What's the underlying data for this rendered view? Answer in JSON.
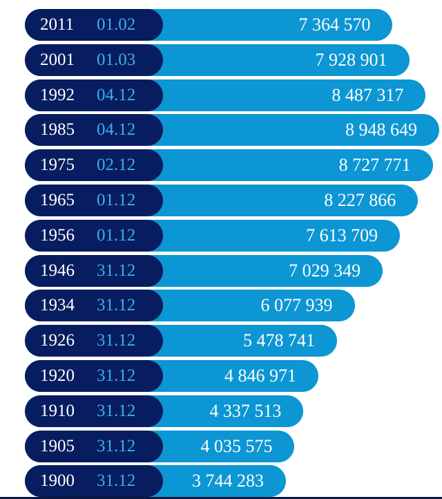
{
  "chart_data": {
    "type": "bar",
    "orientation": "horizontal",
    "categories": [
      {
        "year": "2011",
        "date": "01.02"
      },
      {
        "year": "2001",
        "date": "01.03"
      },
      {
        "year": "1992",
        "date": "04.12"
      },
      {
        "year": "1985",
        "date": "04.12"
      },
      {
        "year": "1975",
        "date": "02.12"
      },
      {
        "year": "1965",
        "date": "01.12"
      },
      {
        "year": "1956",
        "date": "01.12"
      },
      {
        "year": "1946",
        "date": "31.12"
      },
      {
        "year": "1934",
        "date": "31.12"
      },
      {
        "year": "1926",
        "date": "31.12"
      },
      {
        "year": "1920",
        "date": "31.12"
      },
      {
        "year": "1910",
        "date": "31.12"
      },
      {
        "year": "1905",
        "date": "31.12"
      },
      {
        "year": "1900",
        "date": "31.12"
      }
    ],
    "values": [
      7364570,
      7928901,
      8487317,
      8948649,
      8727771,
      8227866,
      7613709,
      7029349,
      6077939,
      5478741,
      4846971,
      4337513,
      4035575,
      3744283
    ],
    "value_labels": [
      "7 364 570",
      "7 928 901",
      "8 487 317",
      "8 948 649",
      "8 727 771",
      "8 227 866",
      "7 613 709",
      "7 029 349",
      "6 077 939",
      "5 478 741",
      "4 846 971",
      "4 337 513",
      "4 035 575",
      "3 744 283"
    ],
    "title": "",
    "xlabel": "",
    "ylabel": "",
    "grid": false,
    "legend": "none"
  },
  "colors": {
    "bar": "#0c96d3",
    "label_background": "#071d5f",
    "year_text": "#ffffff",
    "date_text": "#3db0ec",
    "value_text": "#ffffff",
    "baseline": "#0c1642"
  }
}
